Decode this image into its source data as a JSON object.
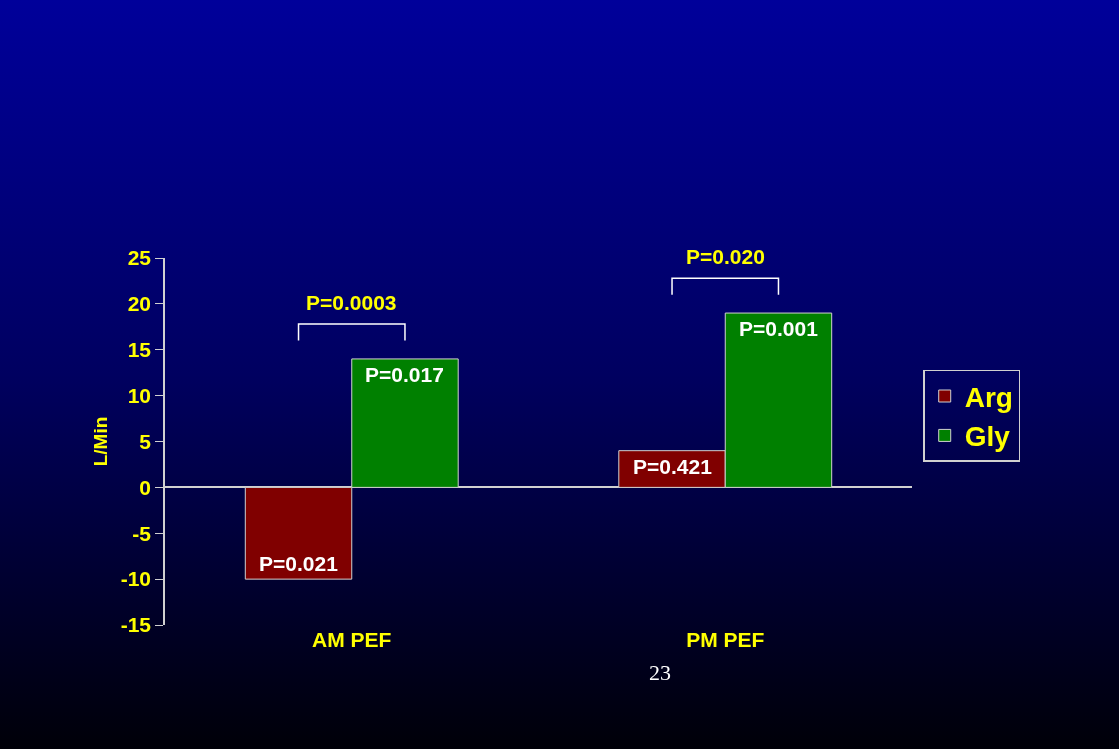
{
  "chart_data": {
    "type": "bar",
    "ylabel": "L/Min",
    "categories": [
      "AM PEF",
      "PM PEF"
    ],
    "series": [
      {
        "name": "Arg",
        "color": "#800000",
        "values": [
          -10,
          4
        ]
      },
      {
        "name": "Gly",
        "color": "#008000",
        "values": [
          14,
          19
        ]
      }
    ],
    "ylim": [
      -15,
      25
    ],
    "yticks": [
      -15,
      -10,
      -5,
      0,
      5,
      10,
      15,
      20,
      25
    ],
    "legend": "right",
    "annotations": [
      "P=0.0003",
      "P=0.020",
      {
        "text": "P=0.021",
        "x": "AM PEF",
        "y": -10
      },
      {
        "text": "P=0.017",
        "x": "AM PEF",
        "y": 14
      },
      {
        "text": "P=0.421",
        "x": "PM PEF",
        "y": 4
      },
      {
        "text": "P=0.001",
        "x": "PM PEF",
        "y": 19
      },
      "23"
    ]
  }
}
